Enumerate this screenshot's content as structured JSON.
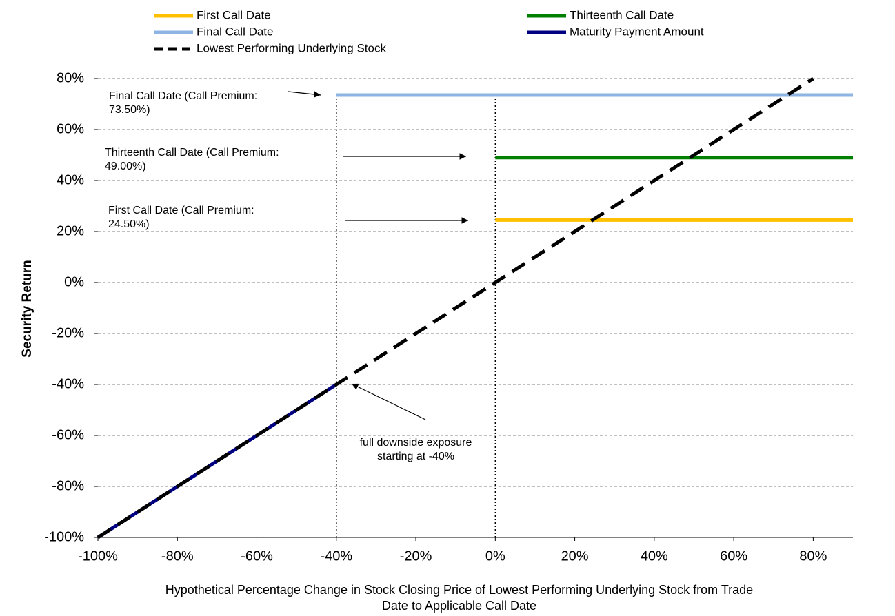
{
  "chart_data": {
    "type": "line",
    "x_label": [
      "Hypothetical Percentage Change in Stock Closing Price of Lowest Performing Underlying Stock from Trade",
      "Date to Applicable Call Date"
    ],
    "y_label": "Security Return",
    "xlim": [
      -100,
      90
    ],
    "ylim": [
      -100,
      80
    ],
    "xticks": [
      {
        "value": -100,
        "label": "-100%"
      },
      {
        "value": -80,
        "label": "-80%"
      },
      {
        "value": -60,
        "label": "-60%"
      },
      {
        "value": -40,
        "label": "-40%"
      },
      {
        "value": -20,
        "label": "-20%"
      },
      {
        "value": 0,
        "label": "0%"
      },
      {
        "value": 20,
        "label": "20%"
      },
      {
        "value": 40,
        "label": "40%"
      },
      {
        "value": 60,
        "label": "60%"
      },
      {
        "value": 80,
        "label": "80%"
      }
    ],
    "yticks": [
      {
        "value": -100,
        "label": "-100%"
      },
      {
        "value": -80,
        "label": "-80%"
      },
      {
        "value": -60,
        "label": "-60%"
      },
      {
        "value": -40,
        "label": "-40%"
      },
      {
        "value": -20,
        "label": "-20%"
      },
      {
        "value": 0,
        "label": "0%"
      },
      {
        "value": 20,
        "label": "20%"
      },
      {
        "value": 40,
        "label": "40%"
      },
      {
        "value": 60,
        "label": "60%"
      },
      {
        "value": 80,
        "label": "80%"
      }
    ],
    "grid": true,
    "vlines": [
      -40,
      0
    ],
    "series": [
      {
        "name": "First Call Date",
        "color": "#FFC000",
        "x": [
          0,
          90
        ],
        "values": [
          24.5,
          24.5
        ]
      },
      {
        "name": "Thirteenth Call Date",
        "color": "#008000",
        "x": [
          0,
          90
        ],
        "values": [
          49,
          49
        ]
      },
      {
        "name": "Final Call Date",
        "color": "#8DB4E2",
        "x": [
          -40,
          90
        ],
        "values": [
          73.5,
          73.5
        ]
      },
      {
        "name": "Maturity Payment Amount",
        "color": "#000080",
        "x": [
          -100,
          -40
        ],
        "values": [
          -100,
          -40
        ]
      },
      {
        "name": "Lowest Performing Underlying Stock",
        "color": "#000000",
        "dashed": true,
        "x": [
          -100,
          80
        ],
        "values": [
          -100,
          80
        ]
      }
    ],
    "annotations": [
      {
        "lines": [
          "Final Call Date (Call Premium:",
          "73.50%)"
        ]
      },
      {
        "lines": [
          "Thirteenth Call Date (Call Premium:",
          "49.00%)"
        ]
      },
      {
        "lines": [
          "First Call Date (Call Premium:",
          "24.50%)"
        ]
      },
      {
        "lines": [
          "full downside exposure",
          "starting at -40%"
        ]
      }
    ]
  }
}
